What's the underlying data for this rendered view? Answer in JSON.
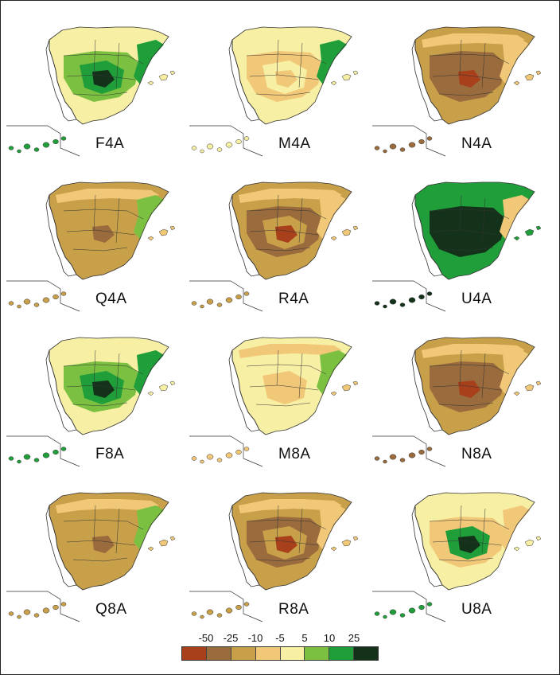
{
  "figure": {
    "panels": [
      {
        "label": "F4A",
        "scheme": "green-center"
      },
      {
        "label": "M4A",
        "scheme": "light-east-green"
      },
      {
        "label": "N4A",
        "scheme": "dry-center"
      },
      {
        "label": "Q4A",
        "scheme": "mid-dry"
      },
      {
        "label": "R4A",
        "scheme": "dry-center-light"
      },
      {
        "label": "U4A",
        "scheme": "wet-all"
      },
      {
        "label": "F8A",
        "scheme": "green-center"
      },
      {
        "label": "M8A",
        "scheme": "light"
      },
      {
        "label": "N8A",
        "scheme": "dry-center"
      },
      {
        "label": "Q8A",
        "scheme": "mid-dry"
      },
      {
        "label": "R8A",
        "scheme": "dry-center-light"
      },
      {
        "label": "U8A",
        "scheme": "green-south"
      }
    ],
    "legend": {
      "ticks": [
        "-50",
        "-25",
        "-10",
        "-5",
        "5",
        "10",
        "25"
      ],
      "colors": [
        "#a8401c",
        "#9a6b3c",
        "#c8a04a",
        "#f1c878",
        "#f7efa4",
        "#7cc042",
        "#1f9e3a",
        "#14321a"
      ]
    }
  }
}
